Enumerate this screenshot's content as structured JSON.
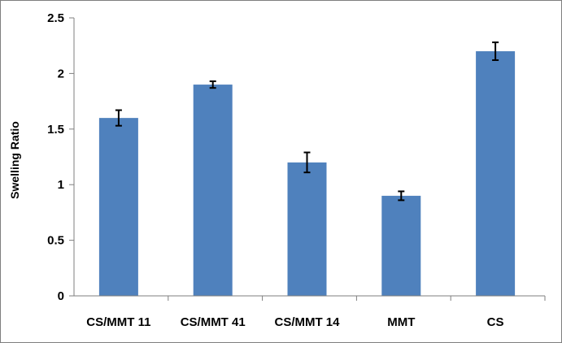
{
  "chart_data": {
    "type": "bar",
    "title": "",
    "xlabel": "",
    "ylabel": "Swelling Ratio",
    "ylim": [
      0,
      2.5
    ],
    "yticks": [
      "0",
      "0.5",
      "1",
      "1.5",
      "2",
      "2.5"
    ],
    "grid": false,
    "legend": "none",
    "bar_color": "#4f81bd",
    "categories": [
      "CS/MMT 11",
      "CS/MMT 41",
      "CS/MMT 14",
      "MMT",
      "CS"
    ],
    "values": [
      1.6,
      1.9,
      1.2,
      0.9,
      2.2
    ],
    "errors": [
      0.07,
      0.03,
      0.09,
      0.04,
      0.08
    ]
  }
}
